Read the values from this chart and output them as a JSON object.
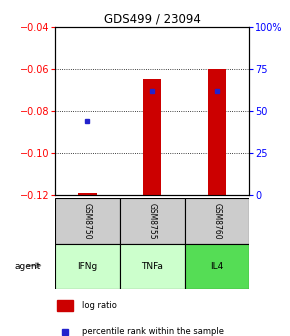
{
  "title": "GDS499 / 23094",
  "samples": [
    "GSM8750",
    "GSM8755",
    "GSM8760"
  ],
  "agents": [
    "IFNg",
    "TNFa",
    "IL4"
  ],
  "ylim_left": [
    -0.12,
    -0.04
  ],
  "yticks_left": [
    -0.12,
    -0.1,
    -0.08,
    -0.06,
    -0.04
  ],
  "ylim_right": [
    0,
    100
  ],
  "yticks_right": [
    0,
    25,
    50,
    75,
    100
  ],
  "ytick_labels_right": [
    "0",
    "25",
    "50",
    "75",
    "100%"
  ],
  "bar_bottom": -0.12,
  "log_ratios": [
    -0.119,
    -0.065,
    -0.06
  ],
  "percentile_ranks": [
    44,
    62,
    62
  ],
  "bar_color": "#cc0000",
  "dot_color": "#2222cc",
  "sample_bg_color": "#cccccc",
  "agent_bg_colors": [
    "#ccffcc",
    "#ccffcc",
    "#55dd55"
  ],
  "legend_bar_color": "#cc0000",
  "legend_dot_color": "#2222cc",
  "bar_width": 0.28
}
